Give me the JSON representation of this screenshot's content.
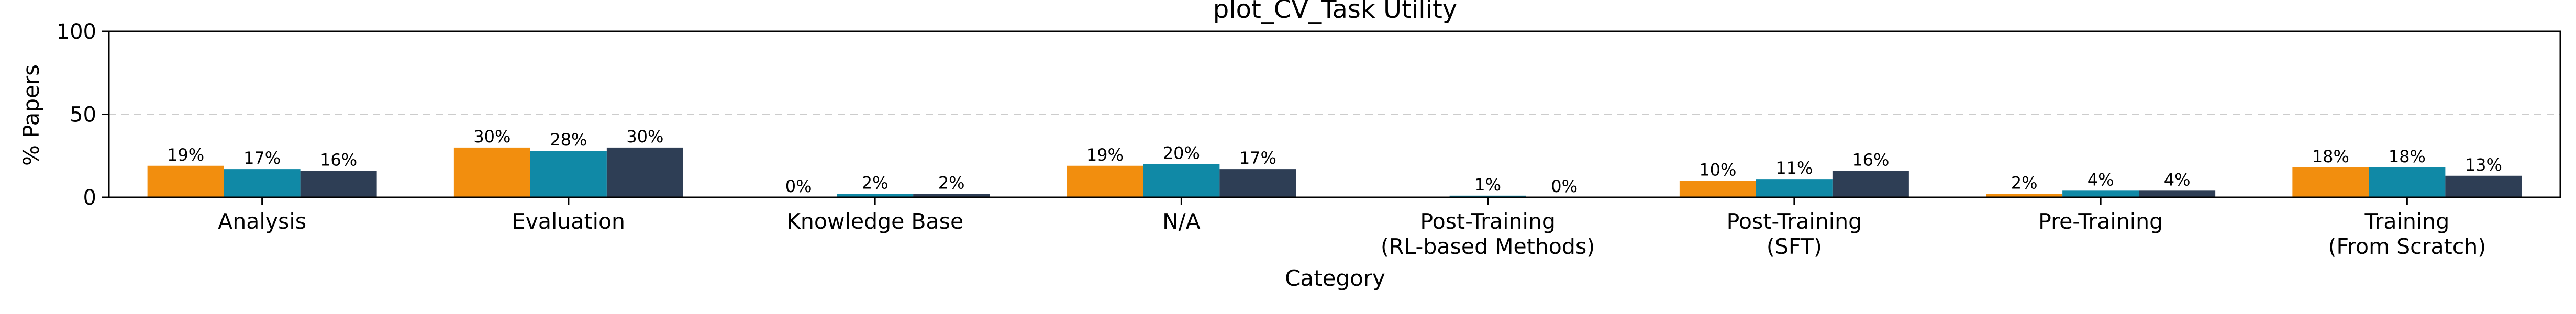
{
  "chart_data": {
    "type": "bar",
    "title": "plot_CV_Task Utility",
    "xlabel": "Category",
    "ylabel": "% Papers",
    "ylim": [
      0,
      100
    ],
    "yticks": [
      "0",
      "50",
      "100"
    ],
    "grid": "horizontal dashed at 50",
    "categories": [
      [
        "Analysis"
      ],
      [
        "Evaluation"
      ],
      [
        "Knowledge Base"
      ],
      [
        "N/A"
      ],
      [
        "Post-Training",
        "(RL-based Methods)"
      ],
      [
        "Post-Training",
        "(SFT)"
      ],
      [
        "Pre-Training"
      ],
      [
        "Training",
        "(From Scratch)"
      ]
    ],
    "series": [
      {
        "color": "#f28e0e",
        "values": [
          19,
          30,
          0,
          19,
          null,
          10,
          2,
          18
        ],
        "labels": [
          "19%",
          "30%",
          "0%",
          "19%",
          "",
          "10%",
          "2%",
          "18%"
        ]
      },
      {
        "color": "#1089a6",
        "values": [
          17,
          28,
          2,
          20,
          1,
          11,
          4,
          18
        ],
        "labels": [
          "17%",
          "28%",
          "2%",
          "20%",
          "1%",
          "11%",
          "4%",
          "18%"
        ]
      },
      {
        "color": "#2e3e55",
        "values": [
          16,
          30,
          2,
          17,
          0,
          16,
          4,
          13
        ],
        "labels": [
          "16%",
          "30%",
          "2%",
          "17%",
          "0%",
          "16%",
          "4%",
          "13%"
        ]
      }
    ]
  }
}
